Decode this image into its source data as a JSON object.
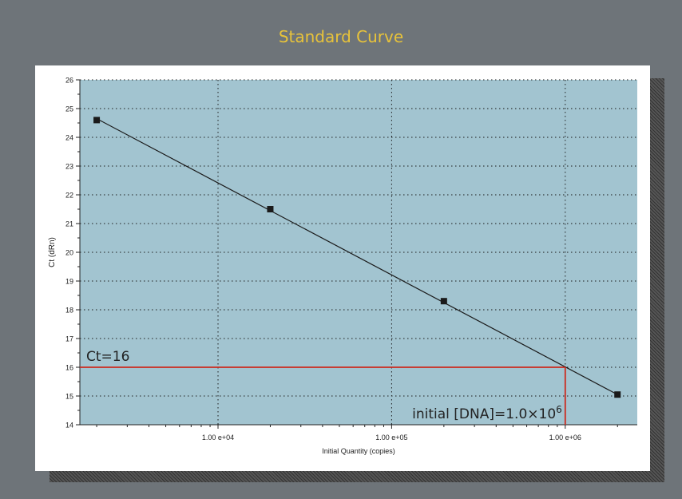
{
  "chart_data": {
    "type": "scatter",
    "title": "Standard Curve",
    "xlabel": "Initial Quantity (copies)",
    "ylabel": "Ct (dRn)",
    "x_scale": "log",
    "xlim": [
      1600,
      2600000
    ],
    "ylim": [
      14,
      26
    ],
    "xticks": [
      10000,
      100000,
      1000000
    ],
    "xtick_labels": [
      "1.00 e+04",
      "1.00 e+05",
      "1.00 e+06"
    ],
    "yticks": [
      14,
      15,
      16,
      17,
      18,
      19,
      20,
      21,
      22,
      23,
      24,
      25,
      26
    ],
    "grid": true,
    "series": [
      {
        "x": [
          2000,
          20000,
          200000,
          2000000
        ],
        "y": [
          24.6,
          21.5,
          18.3,
          15.05
        ]
      }
    ],
    "fit_line": {
      "x": [
        2000,
        2000000
      ],
      "y": [
        24.65,
        15.05
      ]
    },
    "annotations": {
      "ct_label": "Ct=16",
      "ct_value": 16,
      "dna_label_main": "initial [DNA]=1.0×10",
      "dna_label_sup": "6",
      "dna_value": 1000000
    },
    "colors": {
      "plot_bg": "#a2c4d0",
      "marker": "#1a1a1a",
      "fit_line": "#1a1a1a",
      "annotation_line": "#cc2a1e",
      "title": "#e8c33a"
    }
  }
}
